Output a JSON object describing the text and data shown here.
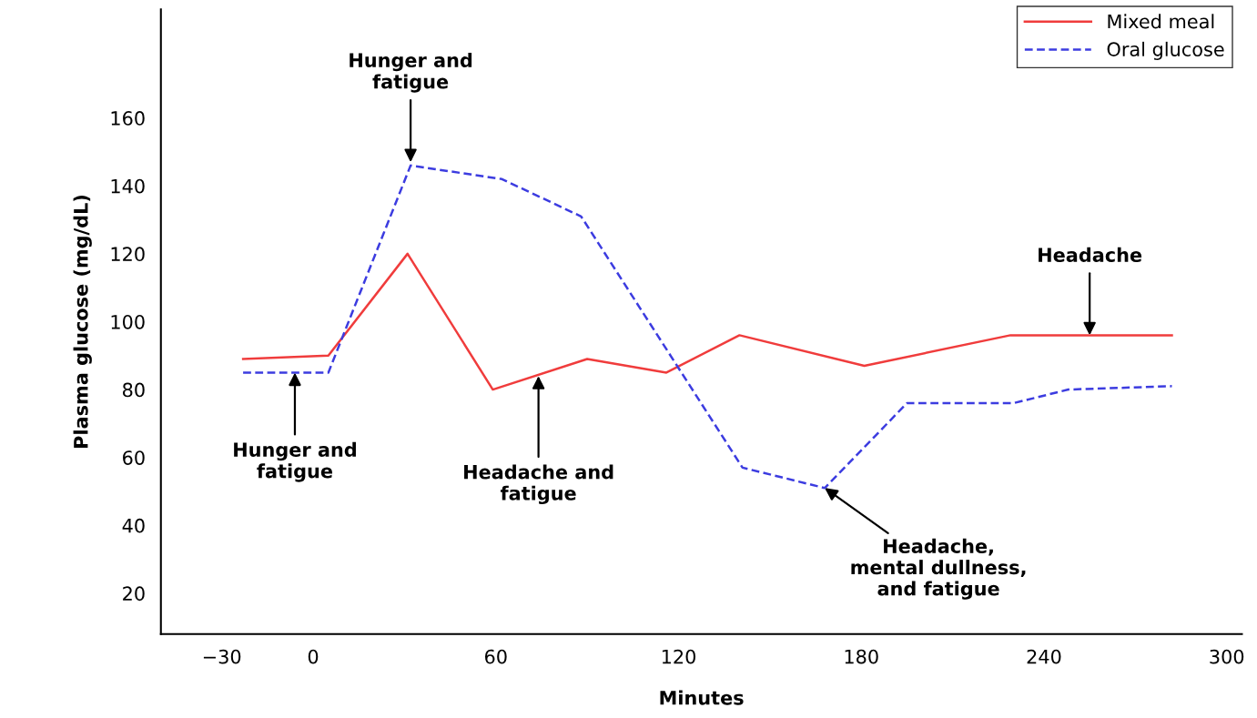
{
  "chart_data": {
    "type": "line",
    "xlabel": "Minutes",
    "ylabel": "Plasma glucose (mg/dL)",
    "xlim": [
      -50,
      305
    ],
    "xticks": [
      {
        "value": -30,
        "label": "−30"
      },
      0,
      60,
      120,
      180,
      240,
      300
    ],
    "ylim": [
      8,
      192
    ],
    "yticks": [
      20,
      40,
      60,
      80,
      100,
      120,
      140,
      160
    ],
    "grid": false,
    "legend": "top right",
    "series": [
      {
        "name": "Mixed meal",
        "color": "#f03c3c",
        "line_style": "solid",
        "x": [
          -23,
          5,
          31,
          59,
          90,
          116,
          140,
          181,
          229,
          282
        ],
        "values": [
          89,
          90,
          120,
          80,
          89,
          85,
          96,
          87,
          96,
          96
        ]
      },
      {
        "name": "Oral glucose",
        "color": "#3c3ce0",
        "line_style": "dashed",
        "x": [
          -23,
          5,
          32,
          62,
          88,
          141,
          168,
          195,
          230,
          248,
          282
        ],
        "values": [
          85,
          85,
          146,
          142,
          131,
          57,
          51,
          76,
          76,
          80,
          81
        ]
      }
    ],
    "annotations": [
      {
        "text": "Hunger and\nfatigue",
        "x": 32,
        "y": 147
      },
      {
        "text": "Hunger and\nfatigue",
        "x": -6,
        "y": 85
      },
      {
        "text": "Headache and\nfatigue",
        "x": 74,
        "y": 84
      },
      {
        "text": "Headache",
        "x": 255,
        "y": 96
      },
      {
        "text": "Headache,\nmental dullness,\nand fatigue",
        "x": 168,
        "y": 51
      }
    ]
  }
}
